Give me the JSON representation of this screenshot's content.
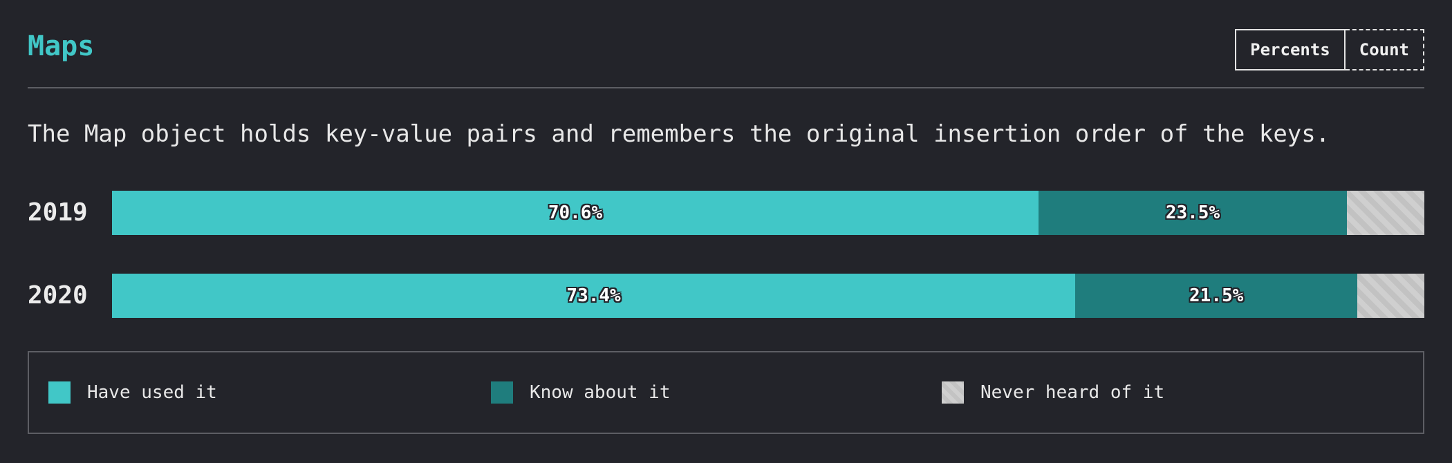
{
  "header": {
    "title": "Maps",
    "toggle": {
      "percents_label": "Percents",
      "count_label": "Count"
    }
  },
  "description": "The Map object holds key-value pairs and remembers the original insertion order of the keys.",
  "legend": [
    {
      "label": "Have used it",
      "color": "#41c7c7"
    },
    {
      "label": "Know about it",
      "color": "#1f7d7d"
    },
    {
      "label": "Never heard of it",
      "color": "#cfcfcf"
    }
  ],
  "chart_data": {
    "type": "bar",
    "orientation": "horizontal",
    "stacked": true,
    "normalized": true,
    "categories": [
      "2019",
      "2020"
    ],
    "series": [
      {
        "name": "Have used it",
        "color": "#41c7c7",
        "values": [
          70.6,
          73.4
        ],
        "labels": [
          "70.6%",
          "73.4%"
        ]
      },
      {
        "name": "Know about it",
        "color": "#1f7d7d",
        "values": [
          23.5,
          21.5
        ],
        "labels": [
          "23.5%",
          "21.5%"
        ]
      },
      {
        "name": "Never heard of it",
        "color": "#cfcfcf",
        "values": [
          5.9,
          5.1
        ],
        "labels": [
          "",
          ""
        ]
      }
    ],
    "xlim": [
      0,
      100
    ],
    "unit": "%",
    "legend_position": "bottom"
  }
}
